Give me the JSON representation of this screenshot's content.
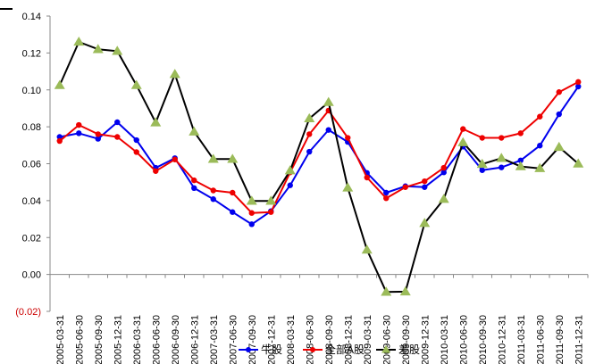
{
  "chart_data": {
    "type": "line",
    "title": "",
    "xlabel": "",
    "ylabel": "",
    "ylim": [
      -0.02,
      0.14
    ],
    "yticks": [
      -0.02,
      0.0,
      0.02,
      0.04,
      0.06,
      0.08,
      0.1,
      0.12,
      0.14
    ],
    "ytick_labels": [
      "(0.02)",
      "0.00",
      "0.02",
      "0.04",
      "0.06",
      "0.08",
      "0.10",
      "0.12",
      "0.14"
    ],
    "grid": false,
    "legend_position": "bottom",
    "categories": [
      "2005-03-31",
      "2005-06-30",
      "2005-09-30",
      "2005-12-31",
      "2006-03-31",
      "2006-06-30",
      "2006-09-30",
      "2006-12-31",
      "2007-03-31",
      "2007-06-30",
      "2007-09-30",
      "2007-12-31",
      "2008-03-31",
      "2008-06-30",
      "2008-09-30",
      "2008-12-31",
      "2009-03-31",
      "2009-06-30",
      "2009-09-30",
      "2009-12-31",
      "2010-03-31",
      "2010-06-30",
      "2010-09-30",
      "2010-12-31",
      "2011-03-31",
      "2011-06-30",
      "2011-09-30",
      "2011-12-31"
    ],
    "series": [
      {
        "name": "牛股",
        "color": "#0000ee",
        "marker": "circle",
        "values": [
          0.0745,
          0.0765,
          0.0735,
          0.0825,
          0.0728,
          0.0578,
          0.063,
          0.0468,
          0.0408,
          0.0338,
          0.0272,
          0.0343,
          0.0483,
          0.0665,
          0.0783,
          0.0718,
          0.055,
          0.0443,
          0.0478,
          0.0473,
          0.0553,
          0.0693,
          0.0565,
          0.058,
          0.0618,
          0.0698,
          0.0868,
          0.1018
        ]
      },
      {
        "name": "全部A股",
        "color": "#ee0000",
        "marker": "circle",
        "values": [
          0.0723,
          0.081,
          0.076,
          0.0745,
          0.0663,
          0.056,
          0.0623,
          0.051,
          0.0455,
          0.0443,
          0.0333,
          0.0338,
          0.0553,
          0.076,
          0.0888,
          0.074,
          0.0525,
          0.0413,
          0.0473,
          0.0505,
          0.0578,
          0.0788,
          0.074,
          0.074,
          0.0765,
          0.0855,
          0.0988,
          0.1043
        ]
      },
      {
        "name": "差股",
        "color": "#000000",
        "marker_color": "#9bbb59",
        "marker": "triangle",
        "values": [
          0.1025,
          0.126,
          0.122,
          0.121,
          0.1025,
          0.0823,
          0.1085,
          0.0773,
          0.0625,
          0.0625,
          0.0398,
          0.0398,
          0.0563,
          0.0845,
          0.0933,
          0.047,
          0.0133,
          -0.0095,
          -0.0093,
          0.0278,
          0.0408,
          0.0715,
          0.0598,
          0.063,
          0.0585,
          0.0575,
          0.069,
          0.06
        ]
      }
    ]
  }
}
